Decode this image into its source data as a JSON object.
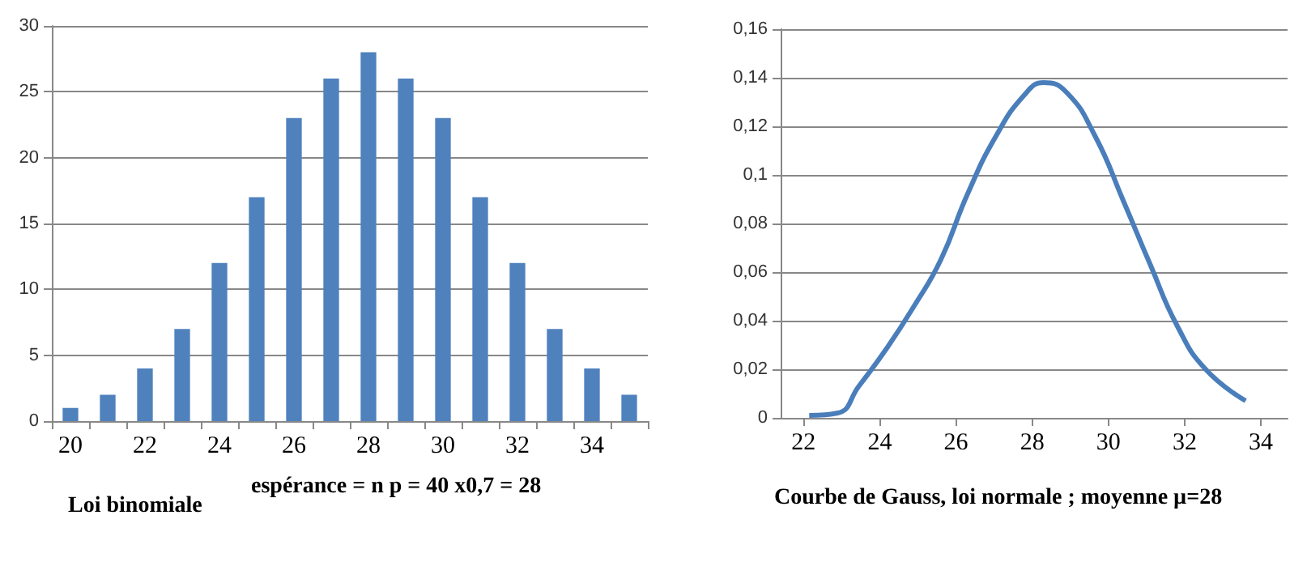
{
  "chart_data": [
    {
      "type": "bar",
      "categories": [
        "20",
        null,
        "22",
        null,
        "24",
        null,
        "26",
        null,
        "28",
        null,
        "30",
        null,
        "32",
        null,
        "34",
        null
      ],
      "series": [
        {
          "color": "#4f81bd",
          "values": [
            1,
            2,
            4,
            7,
            12,
            17,
            23,
            26,
            28,
            26,
            23,
            17,
            12,
            7,
            4,
            2
          ]
        }
      ],
      "ylim": [
        0,
        30
      ],
      "yticks": [
        0,
        5,
        10,
        15,
        20,
        25,
        30
      ],
      "grid": "y",
      "annotations": [
        "Loi binomiale",
        "espérance = n p = 40 x0,7 = 28"
      ]
    },
    {
      "type": "line",
      "x": [
        22.15,
        22.9,
        23.45,
        24.2,
        24.9,
        25.6,
        26.3,
        27.05,
        27.8,
        28.3,
        28.9,
        29.65,
        30.4,
        31.1,
        31.8,
        32.55,
        33.6
      ],
      "series": [
        {
          "color": "#4a7ebb",
          "values": [
            0.001,
            0.002,
            0.013,
            0.029,
            0.046,
            0.065,
            0.092,
            0.116,
            0.133,
            0.138,
            0.134,
            0.116,
            0.089,
            0.063,
            0.038,
            0.02,
            0.007
          ]
        }
      ],
      "xlim": [
        21.4,
        34.7
      ],
      "xticks": [
        22,
        24,
        26,
        28,
        30,
        32,
        34
      ],
      "ylim": [
        0,
        0.16
      ],
      "yticks": [
        0,
        {
          "value": 0.02,
          "label": "0,02"
        },
        {
          "value": 0.04,
          "label": "0,04"
        },
        {
          "value": 0.06,
          "label": "0,06"
        },
        {
          "value": 0.08,
          "label": "0,08"
        },
        {
          "value": 0.1,
          "label": "0,1"
        },
        {
          "value": 0.12,
          "label": "0,12"
        },
        {
          "value": 0.14,
          "label": "0,14"
        },
        {
          "value": 0.16,
          "label": "0,16"
        }
      ],
      "grid": "y",
      "marker": "none",
      "line_style": "solid",
      "annotations": [
        "Courbe de Gauss, loi normale ; moyenne µ=28"
      ]
    }
  ]
}
